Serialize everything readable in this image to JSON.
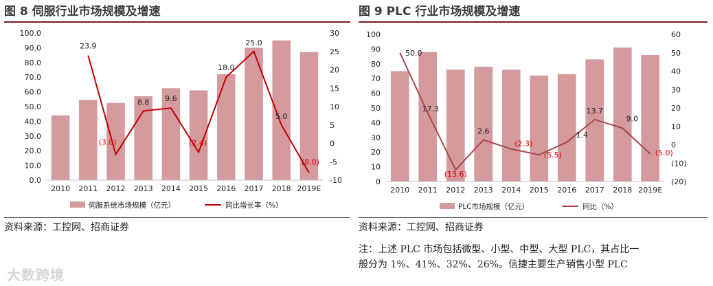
{
  "figure8": {
    "title": "图 8  伺服行业市场规模及增速",
    "source": "资料来源：工控网、招商证券"
  },
  "figure9": {
    "title": "图 9 PLC 行业市场规模及增速",
    "source": "资料来源：工控网、招商证券",
    "note_line1": "注：上述 PLC 市场包括微型、小型、中型、大型 PLC，其占比一",
    "note_line2": "般分为 1%、41%、32%、26%。信捷主要生产销售小型 PLC"
  },
  "watermark": "大数跨境",
  "colors": {
    "bar": "#d49a9e",
    "line8": "#c00000",
    "line9": "#a8464c",
    "neg_label": "#e00000",
    "rule": "#7a1a2a"
  },
  "chart_data": [
    {
      "type": "bar+line",
      "title": "伺服行业市场规模及增速",
      "categories": [
        "2010",
        "2011",
        "2012",
        "2013",
        "2014",
        "2015",
        "2016",
        "2017",
        "2018",
        "2019E"
      ],
      "bars": {
        "name": "伺服系统市场规模（亿元）",
        "values": [
          44,
          54.5,
          52.5,
          57,
          62.5,
          61,
          72,
          90,
          95,
          87
        ]
      },
      "line": {
        "name": "同比增长率（%）",
        "values": [
          null,
          23.9,
          -3.0,
          8.8,
          9.6,
          -2.4,
          18.0,
          25.0,
          5.0,
          -8.0
        ]
      },
      "line_labels": [
        "",
        "23.9",
        "(3.0)",
        "8.8",
        "9.6",
        "(2.4)",
        "18.0",
        "25.0",
        "5.0",
        "(8.0)"
      ],
      "left_ticks": [
        "0.0",
        "10.0",
        "20.0",
        "30.0",
        "40.0",
        "50.0",
        "60.0",
        "70.0",
        "80.0",
        "90.0",
        "100.0"
      ],
      "left_range": [
        0,
        100
      ],
      "right_ticks": [
        "-10",
        "-5",
        "0",
        "5",
        "10",
        "15",
        "20",
        "25",
        "30"
      ],
      "right_range": [
        -10,
        30
      ]
    },
    {
      "type": "bar+line",
      "title": "PLC 行业市场规模及增速",
      "categories": [
        "2010",
        "2011",
        "2012",
        "2013",
        "2014",
        "2015",
        "2016",
        "2017",
        "2018",
        "2019E"
      ],
      "bars": {
        "name": "PLC市场规模（亿元）",
        "values": [
          75,
          88,
          76,
          78,
          76,
          72,
          73,
          83,
          91,
          86
        ]
      },
      "line": {
        "name": "同比（%）",
        "values": [
          50.0,
          17.3,
          -13.6,
          2.6,
          -2.3,
          -5.5,
          1.4,
          13.7,
          9.0,
          -5.0
        ]
      },
      "line_labels": [
        "50.0",
        "17.3",
        "(13.6)",
        "2.6",
        "(2.3)",
        "(5.5)",
        "1.4",
        "13.7",
        "9.0",
        "(5.0)"
      ],
      "left_ticks": [
        "0",
        "10",
        "20",
        "30",
        "40",
        "50",
        "60",
        "70",
        "80",
        "90",
        "100"
      ],
      "left_range": [
        0,
        100
      ],
      "right_ticks": [
        "(20)",
        "(10)",
        "0",
        "10",
        "20",
        "30",
        "40",
        "50",
        "60"
      ],
      "right_range": [
        -20,
        60
      ]
    }
  ]
}
